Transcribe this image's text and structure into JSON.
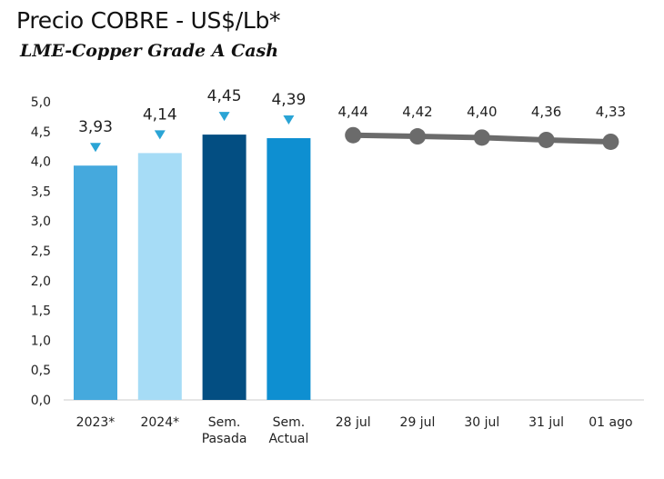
{
  "chart_data": {
    "type": "bar",
    "title": "Precio COBRE - US$/Lb*",
    "subtitle": "LME-Copper Grade A Cash",
    "xlabel": "",
    "ylabel": "",
    "ylim": [
      0,
      5.0
    ],
    "yticks": [
      "0,0",
      "0,5",
      "1,0",
      "1,5",
      "2,0",
      "2,5",
      "3,0",
      "3,5",
      "4,0",
      "4,5",
      "5,0"
    ],
    "categories": [
      [
        "2023*"
      ],
      [
        "2024*"
      ],
      [
        "Sem.",
        "Pasada"
      ],
      [
        "Sem.",
        "Actual"
      ],
      [
        "28 jul"
      ],
      [
        "29 jul"
      ],
      [
        "30 jul"
      ],
      [
        "31 jul"
      ],
      [
        "01 ago"
      ]
    ],
    "bars": [
      {
        "category_index": 0,
        "value": 3.93,
        "label": "3,93",
        "color": "#45a9dd"
      },
      {
        "category_index": 1,
        "value": 4.14,
        "label": "4,14",
        "color": "#a6dcf6"
      },
      {
        "category_index": 2,
        "value": 4.45,
        "label": "4,45",
        "color": "#034e82"
      },
      {
        "category_index": 3,
        "value": 4.39,
        "label": "4,39",
        "color": "#0e8fd1"
      }
    ],
    "line": {
      "start_index": 4,
      "values": [
        4.44,
        4.42,
        4.4,
        4.36,
        4.33
      ],
      "labels": [
        "4,44",
        "4,42",
        "4,40",
        "4,36",
        "4,33"
      ],
      "color": "#6b6b6b"
    },
    "marker_color": "#2aa4d5",
    "grid": false
  }
}
